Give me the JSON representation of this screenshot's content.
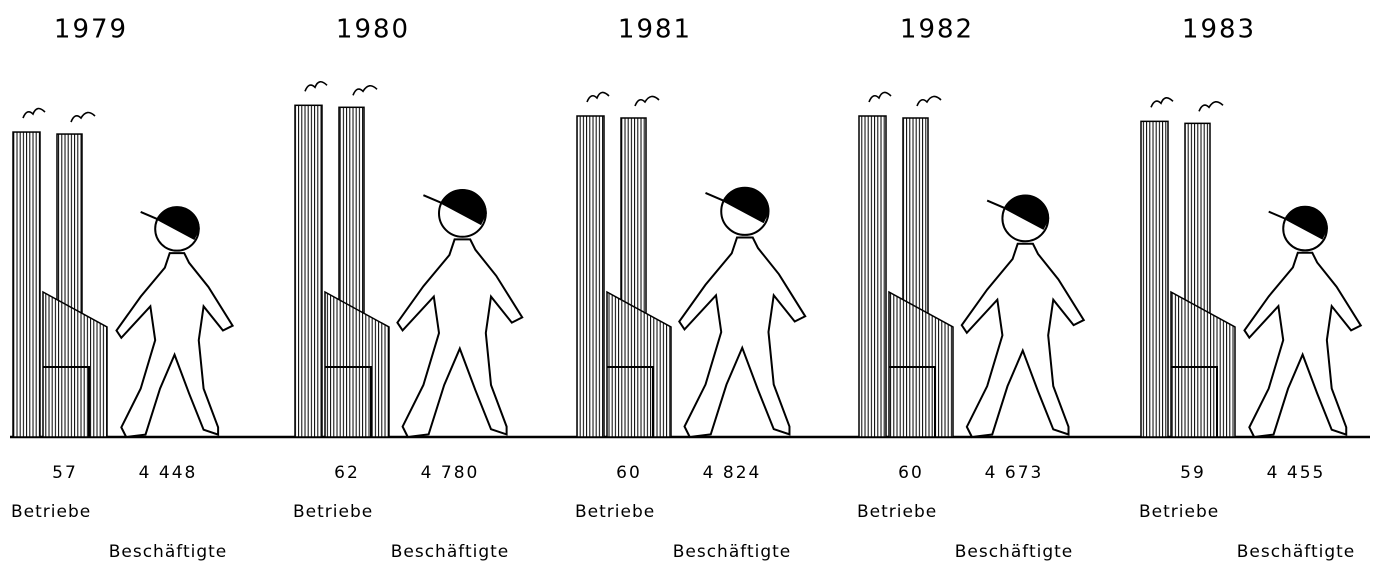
{
  "chart_data": {
    "type": "pictogram",
    "categories": [
      "1979",
      "1980",
      "1981",
      "1982",
      "1983"
    ],
    "series": [
      {
        "name": "Betriebe",
        "color": "#000000",
        "values": [
          57,
          62,
          60,
          60,
          59
        ]
      },
      {
        "name": "Beschäftigte",
        "color": "#000000",
        "values": [
          4448,
          4780,
          4824,
          4673,
          4455
        ],
        "value_labels": [
          "4 448",
          "4 780",
          "4 824",
          "4 673",
          "4 455"
        ]
      }
    ]
  }
}
